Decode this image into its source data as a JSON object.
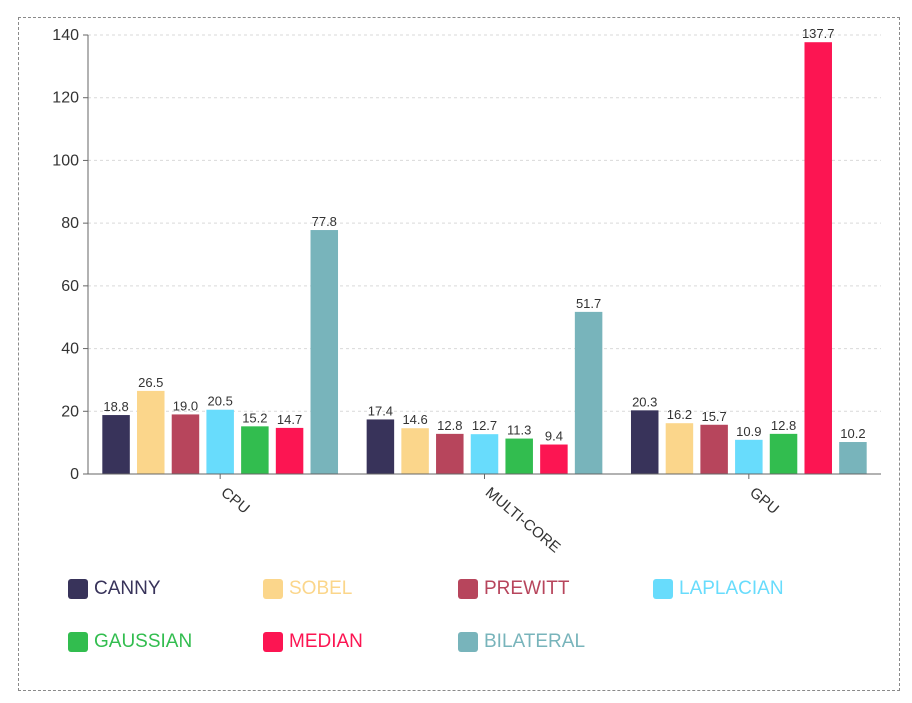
{
  "chart_data": {
    "type": "bar",
    "categories": [
      "CPU",
      "MULTI-CORE",
      "GPU"
    ],
    "series": [
      {
        "name": "CANNY",
        "color": "#38335a",
        "values": [
          18.8,
          17.4,
          20.3
        ]
      },
      {
        "name": "SOBEL",
        "color": "#fbd68b",
        "values": [
          26.5,
          14.6,
          16.2
        ]
      },
      {
        "name": "PREWITT",
        "color": "#b7455c",
        "values": [
          19.0,
          12.8,
          15.7
        ]
      },
      {
        "name": "LAPLACIAN",
        "color": "#68dcfc",
        "values": [
          20.5,
          12.7,
          10.9
        ]
      },
      {
        "name": "GAUSSIAN",
        "color": "#32bd4f",
        "values": [
          15.2,
          11.3,
          12.8
        ]
      },
      {
        "name": "MEDIAN",
        "color": "#fc1552",
        "values": [
          14.7,
          9.4,
          137.7
        ]
      },
      {
        "name": "BILATERAL",
        "color": "#78b4bb",
        "values": [
          77.8,
          51.7,
          10.2
        ]
      }
    ],
    "yticks": [
      0,
      20,
      40,
      60,
      80,
      100,
      120,
      140
    ],
    "ylim": [
      0,
      140
    ],
    "grid": true,
    "legend_position": "bottom"
  }
}
